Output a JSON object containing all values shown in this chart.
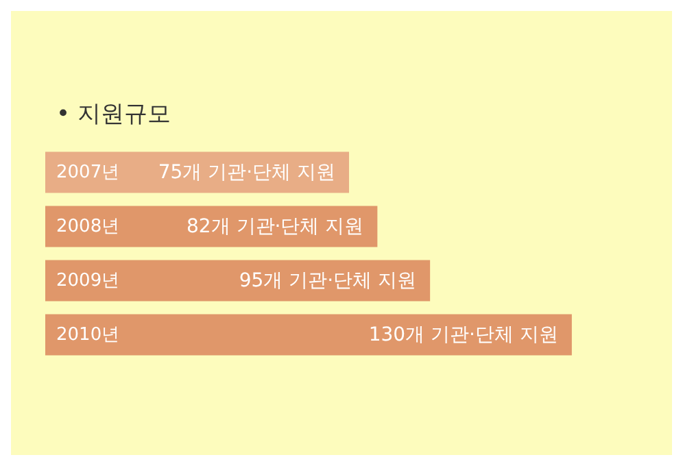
{
  "chart_data": {
    "type": "bar",
    "title": "• 지원규모",
    "orientation": "horizontal",
    "categories": [
      "2007년",
      "2008년",
      "2009년",
      "2010년"
    ],
    "values": [
      75,
      82,
      95,
      130
    ],
    "colors": [
      "#e8ad86",
      "#e0976a",
      "#e0976a",
      "#e0976a"
    ],
    "value_labels": [
      "75개 기관·단체 지원",
      "82개 기관·단체 지원",
      "95개 기관·단체 지원",
      "130개 기관·단체 지원"
    ]
  }
}
